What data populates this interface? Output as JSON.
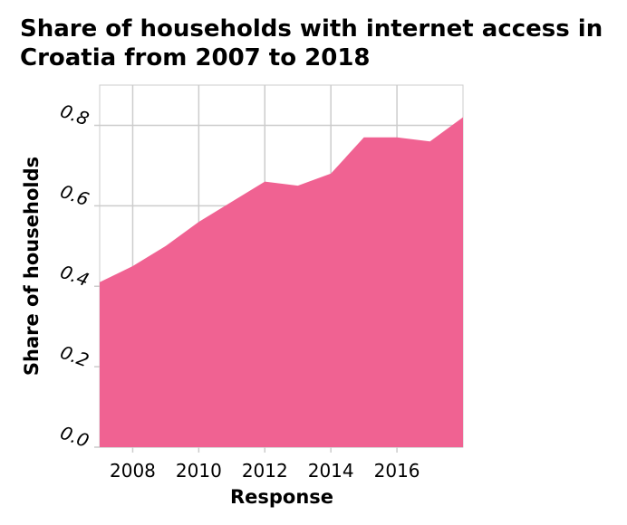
{
  "chart_data": {
    "type": "area",
    "title": "Share of households with internet access in Croatia from 2007 to 2018",
    "xlabel": "Response",
    "ylabel": "Share of households",
    "x": [
      2007,
      2008,
      2009,
      2010,
      2011,
      2012,
      2013,
      2014,
      2015,
      2016,
      2017,
      2018
    ],
    "series": [
      {
        "values": [
          0.41,
          0.45,
          0.5,
          0.56,
          0.61,
          0.66,
          0.65,
          0.68,
          0.77,
          0.77,
          0.76,
          0.82
        ]
      }
    ],
    "xlim": [
      2007,
      2018
    ],
    "ylim": [
      0.0,
      0.9
    ],
    "x_ticks": [
      2008,
      2010,
      2012,
      2014,
      2016
    ],
    "y_ticks": [
      "0.0",
      "0.2",
      "0.4",
      "0.6",
      "0.8"
    ],
    "grid": true,
    "colors": {
      "fill": "#f06292",
      "grid": "#cccccc"
    }
  }
}
